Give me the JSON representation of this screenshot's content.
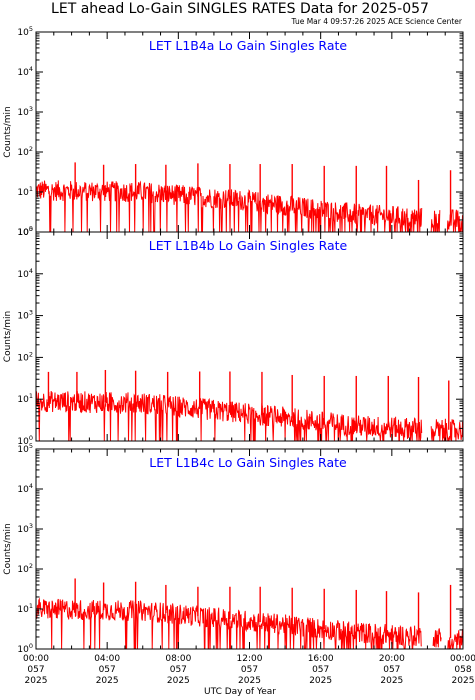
{
  "header": {
    "title": "LET ahead Lo-Gain SINGLES RATES Data for 2025-057",
    "timestamp": "Tue Mar  4 09:57:26 2025 ACE Science Center"
  },
  "colors": {
    "series": "#ff0000",
    "panel_title": "#0000ff",
    "axes": "#000000"
  },
  "chart_data": [
    {
      "type": "line",
      "title": "LET L1B4a Lo Gain Singles Rate",
      "ylabel": "Counts/min",
      "yscale": "log",
      "ylim": [
        1,
        100000
      ],
      "xlim": [
        0,
        24
      ],
      "x_unit": "hours",
      "baseline": [
        [
          0,
          11
        ],
        [
          6,
          10
        ],
        [
          12,
          6
        ],
        [
          18,
          2.8
        ],
        [
          24,
          2
        ]
      ],
      "spikes": [
        [
          2.2,
          55
        ],
        [
          3.8,
          48
        ],
        [
          5.6,
          50
        ],
        [
          7.3,
          48
        ],
        [
          9.1,
          52
        ],
        [
          10.9,
          50
        ],
        [
          12.6,
          50
        ],
        [
          14.4,
          50
        ],
        [
          16.2,
          45
        ],
        [
          18.0,
          45
        ],
        [
          19.7,
          45
        ],
        [
          21.5,
          20
        ],
        [
          23.3,
          35
        ]
      ],
      "gaps": [
        [
          21.7,
          22.2
        ],
        [
          22.7,
          23.1
        ]
      ]
    },
    {
      "type": "line",
      "title": "LET L1B4b Lo Gain Singles Rate",
      "ylabel": "Counts/min",
      "yscale": "log",
      "ylim": [
        1,
        100000
      ],
      "xlim": [
        0,
        24
      ],
      "x_unit": "hours",
      "baseline": [
        [
          0,
          9
        ],
        [
          6,
          8
        ],
        [
          12,
          4.5
        ],
        [
          18,
          2.3
        ],
        [
          24,
          1.8
        ]
      ],
      "spikes": [
        [
          0.7,
          45
        ],
        [
          2.3,
          45
        ],
        [
          3.9,
          50
        ],
        [
          5.6,
          48
        ],
        [
          7.4,
          45
        ],
        [
          9.2,
          46
        ],
        [
          10.9,
          46
        ],
        [
          12.7,
          45
        ],
        [
          14.4,
          38
        ],
        [
          16.2,
          36
        ],
        [
          18.0,
          36
        ],
        [
          19.8,
          36
        ],
        [
          21.5,
          34
        ],
        [
          23.2,
          28
        ]
      ],
      "gaps": [
        [
          21.7,
          22.2
        ]
      ]
    },
    {
      "type": "line",
      "title": "LET L1B4c Lo Gain Singles Rate",
      "ylabel": "Counts/min",
      "yscale": "log",
      "ylim": [
        1,
        100000
      ],
      "xlim": [
        0,
        24
      ],
      "x_unit": "hours",
      "baseline": [
        [
          0,
          10
        ],
        [
          6,
          9
        ],
        [
          12,
          5
        ],
        [
          18,
          2.6
        ],
        [
          24,
          1.8
        ]
      ],
      "spikes": [
        [
          2.2,
          58
        ],
        [
          3.8,
          46
        ],
        [
          5.6,
          48
        ],
        [
          7.3,
          40
        ],
        [
          9.1,
          36
        ],
        [
          10.9,
          36
        ],
        [
          12.6,
          36
        ],
        [
          14.4,
          34
        ],
        [
          16.2,
          32
        ],
        [
          18.0,
          30
        ],
        [
          19.7,
          28
        ],
        [
          21.5,
          26
        ],
        [
          23.3,
          40
        ]
      ],
      "gaps": [
        [
          21.7,
          22.3
        ],
        [
          22.8,
          23.1
        ]
      ]
    }
  ],
  "y_ticks": [
    {
      "base": "10",
      "exp": "0"
    },
    {
      "base": "10",
      "exp": "1"
    },
    {
      "base": "10",
      "exp": "2"
    },
    {
      "base": "10",
      "exp": "3"
    },
    {
      "base": "10",
      "exp": "4"
    },
    {
      "base": "10",
      "exp": "5"
    }
  ],
  "x_ticks": [
    {
      "time": "00:00",
      "doy": "057",
      "year": "2025"
    },
    {
      "time": "04:00",
      "doy": "057",
      "year": "2025"
    },
    {
      "time": "08:00",
      "doy": "057",
      "year": "2025"
    },
    {
      "time": "12:00",
      "doy": "057",
      "year": "2025"
    },
    {
      "time": "16:00",
      "doy": "057",
      "year": "2025"
    },
    {
      "time": "20:00",
      "doy": "057",
      "year": "2025"
    },
    {
      "time": "00:00",
      "doy": "058",
      "year": "2025"
    }
  ],
  "xlabel": "UTC Day of Year"
}
